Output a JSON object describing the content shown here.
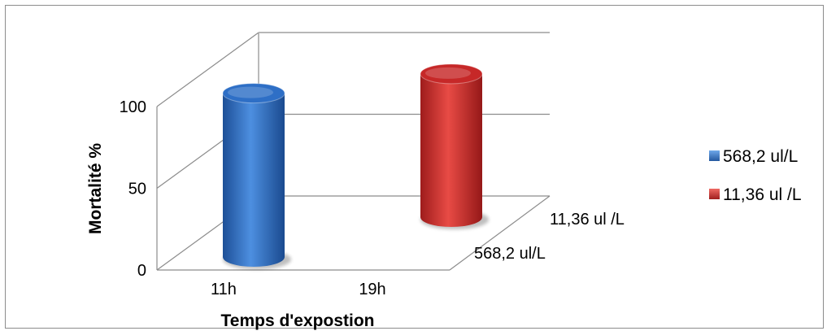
{
  "chart_data": {
    "type": "bar",
    "style": "3d-cylinder",
    "categories": [
      "11h",
      "19h"
    ],
    "depth_categories": [
      "568,2 ul/L",
      "11,36 ul /L"
    ],
    "series": [
      {
        "name": "568,2 ul/L",
        "color": "#2e6fc6",
        "values": [
          100,
          null
        ]
      },
      {
        "name": "11,36 ul /L",
        "color": "#c62828",
        "values": [
          null,
          86
        ]
      }
    ],
    "title": "",
    "xlabel": "Temps d'expostion",
    "ylabel": "Mortalité %",
    "ylim": [
      0,
      100
    ],
    "yticks": [
      0,
      50,
      100
    ],
    "ytick_labels": [
      "0",
      "50",
      "100"
    ],
    "grid": true,
    "legend": "right"
  }
}
